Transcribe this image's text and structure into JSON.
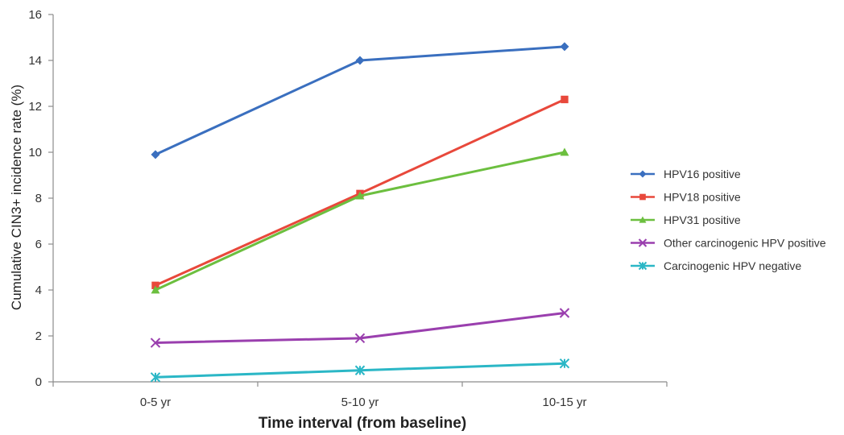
{
  "chart_data": {
    "type": "line",
    "title": "",
    "xlabel": "Time interval (from baseline)",
    "ylabel": "Cumulative CIN3+ incidence rate (%)",
    "categories": [
      "0-5 yr",
      "5-10 yr",
      "10-15 yr"
    ],
    "ylim": [
      0,
      16
    ],
    "yticks": [
      "0",
      "2",
      "4",
      "6",
      "8",
      "10",
      "12",
      "14",
      "16"
    ],
    "grid": false,
    "legend_position": "right",
    "series": [
      {
        "name": "HPV16 positive",
        "values": [
          9.9,
          14.0,
          14.6
        ],
        "color": "#3a6fbf",
        "marker": "diamond"
      },
      {
        "name": "HPV18 positive",
        "values": [
          4.2,
          8.2,
          12.3
        ],
        "color": "#e8483b",
        "marker": "square"
      },
      {
        "name": "HPV31 positive",
        "values": [
          4.0,
          8.1,
          10.0
        ],
        "color": "#6cbf3f",
        "marker": "triangle"
      },
      {
        "name": "Other carcinogenic HPV positive",
        "values": [
          1.7,
          1.9,
          3.0
        ],
        "color": "#9a3fae",
        "marker": "x"
      },
      {
        "name": "Carcinogenic HPV negative",
        "values": [
          0.2,
          0.5,
          0.8
        ],
        "color": "#2bb7c6",
        "marker": "star"
      }
    ]
  }
}
